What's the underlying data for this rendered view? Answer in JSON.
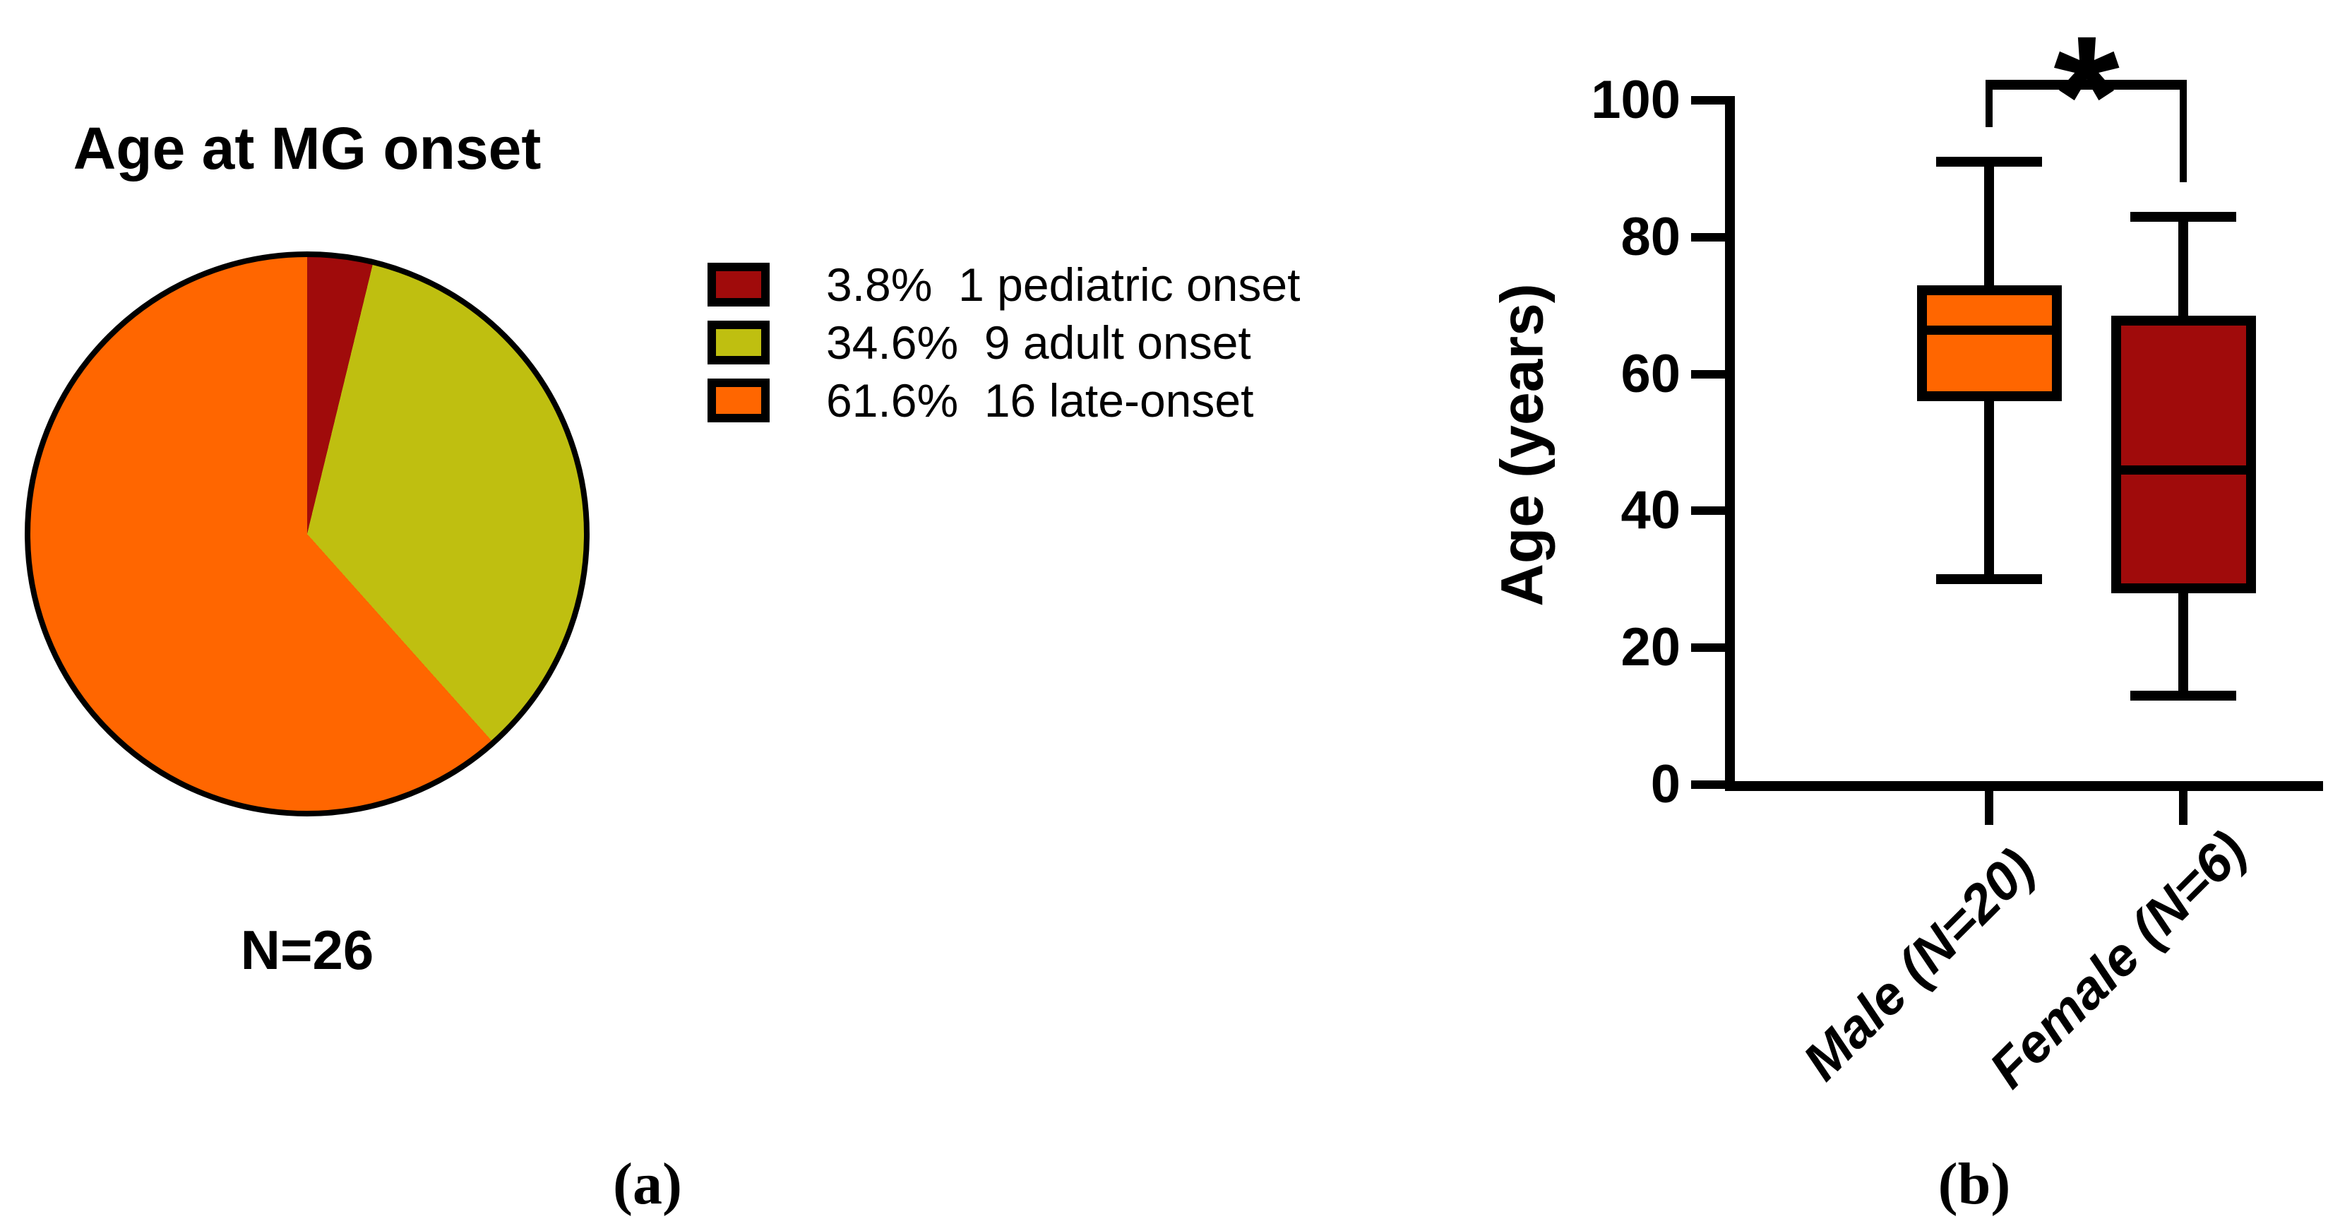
{
  "figure": {
    "panel_a_label": "(a)",
    "panel_b_label": "(b)"
  },
  "chart_data": [
    {
      "type": "pie",
      "title": "Age at MG onset",
      "n_label": "N=26",
      "total_n": 26,
      "start_angle_deg": 0,
      "direction": "clockwise",
      "legend_position": "right",
      "slices": [
        {
          "label": "pediatric onset",
          "count": 1,
          "percent": 3.8,
          "color": "#A00B0B",
          "legend_text": "3.8%  1 pediatric onset"
        },
        {
          "label": "adult onset",
          "count": 9,
          "percent": 34.6,
          "color": "#BFBF10",
          "legend_text": "34.6%  9 adult onset"
        },
        {
          "label": "late-onset",
          "count": 16,
          "percent": 61.6,
          "color": "#FF6600",
          "legend_text": "61.6%  16 late-onset"
        }
      ]
    },
    {
      "type": "box",
      "ylabel": "Age (years)",
      "ylim": [
        0,
        100
      ],
      "yticks": [
        0,
        20,
        40,
        60,
        80,
        100
      ],
      "grid": false,
      "significance": {
        "symbol": "*",
        "between": [
          "Male (N=20)",
          "Female (N=6)"
        ]
      },
      "series": [
        {
          "name": "Male (N=20)",
          "color": "#FF6600",
          "min": 30,
          "q1": 56,
          "median": 66.5,
          "q3": 73,
          "max": 91
        },
        {
          "name": "Female (N=6)",
          "color": "#A00B0B",
          "min": 13,
          "q1": 28,
          "median": 46,
          "q3": 68.5,
          "max": 83
        }
      ]
    }
  ]
}
